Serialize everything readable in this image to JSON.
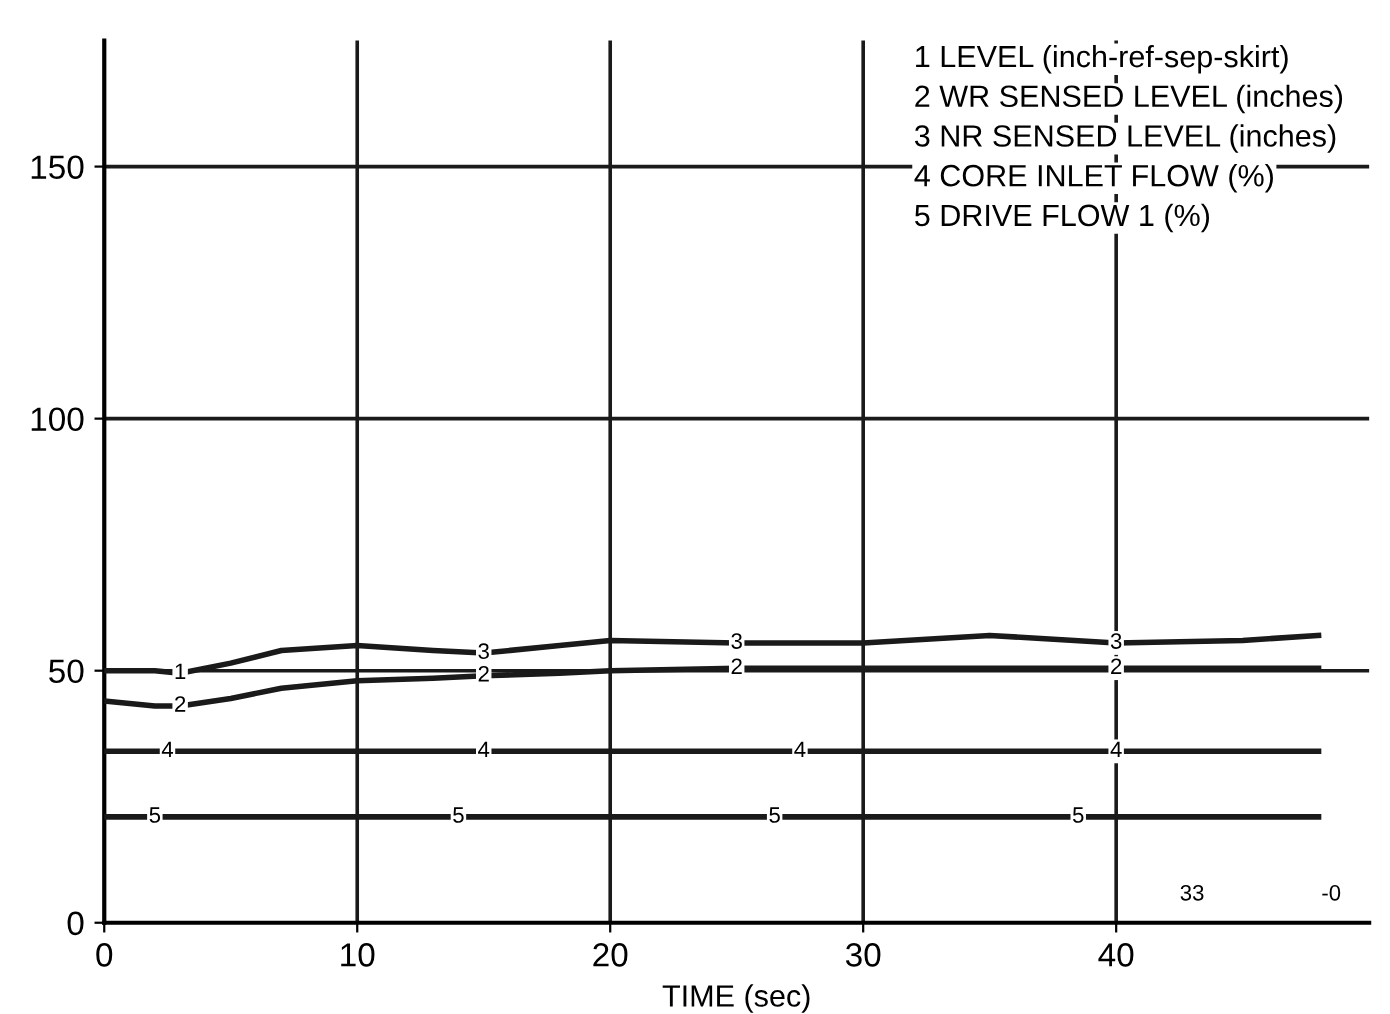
{
  "chart_data": {
    "type": "line",
    "xlabel": "TIME (sec)",
    "xlim": [
      0,
      50
    ],
    "ylim": [
      0,
      175
    ],
    "xticks": [
      0,
      10,
      20,
      30,
      40
    ],
    "yticks": [
      0,
      50,
      100,
      150
    ],
    "grid": true,
    "legend": false,
    "marker": "none",
    "line_style": "solid",
    "series": [
      {
        "color": "#1a1a1a",
        "x": [
          0,
          2,
          3,
          5,
          7,
          10,
          13,
          15,
          18,
          20,
          25,
          30,
          35,
          40,
          45,
          48
        ],
        "values": [
          50,
          50,
          49.5,
          51.5,
          54,
          55,
          54,
          53.5,
          55,
          56,
          55.5,
          55.5,
          57,
          55.5,
          56,
          57
        ]
      },
      {
        "color": "#1a1a1a",
        "x": [
          0,
          2,
          3,
          5,
          7,
          10,
          13,
          15,
          18,
          20,
          25,
          30,
          35,
          40,
          45,
          48
        ],
        "values": [
          44,
          43,
          43,
          44.5,
          46.5,
          48,
          48.5,
          49,
          49.5,
          50,
          50.5,
          50.5,
          50.5,
          50.5,
          50.5,
          50.5
        ]
      },
      {
        "color": "#1a1a1a",
        "x": [
          0,
          48
        ],
        "values": [
          34,
          34
        ]
      },
      {
        "color": "#1a1a1a",
        "x": [
          0,
          48
        ],
        "values": [
          21,
          21
        ]
      }
    ],
    "annotations": [
      "1 LEVEL (inch-ref-sep-skirt)",
      "2 WR SENSED LEVEL (inches)",
      "3 NR SENSED LEVEL (inches)",
      "4 CORE INLET FLOW (%)",
      "5 DRIVE FLOW 1 (%)",
      {
        "text": "1",
        "x": 3,
        "y": 49.5
      },
      {
        "text": "2",
        "x": 3,
        "y": 43
      },
      {
        "text": "4",
        "x": 2.5,
        "y": 34
      },
      {
        "text": "5",
        "x": 2,
        "y": 21
      },
      {
        "text": "3",
        "x": 15,
        "y": 53.5
      },
      {
        "text": "2",
        "x": 15,
        "y": 49
      },
      {
        "text": "4",
        "x": 15,
        "y": 34
      },
      {
        "text": "5",
        "x": 14,
        "y": 21
      },
      {
        "text": "3",
        "x": 25,
        "y": 55.5
      },
      {
        "text": "2",
        "x": 25,
        "y": 50.5
      },
      {
        "text": "4",
        "x": 27.5,
        "y": 34
      },
      {
        "text": "5",
        "x": 26.5,
        "y": 21
      },
      {
        "text": "3",
        "x": 40,
        "y": 55.5
      },
      {
        "text": "2",
        "x": 40,
        "y": 50.5
      },
      {
        "text": "4",
        "x": 40,
        "y": 34
      },
      {
        "text": "5",
        "x": 38.5,
        "y": 21
      },
      "33",
      "-0"
    ]
  }
}
